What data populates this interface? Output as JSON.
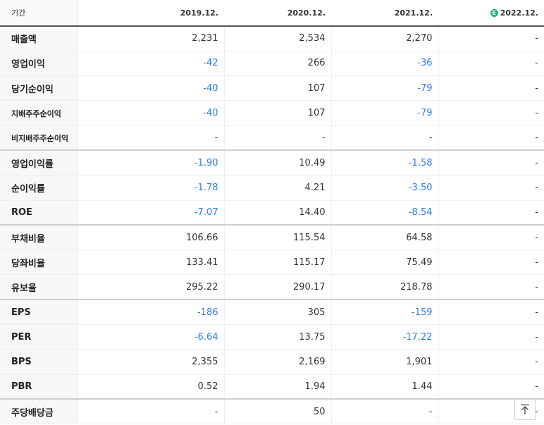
{
  "header": {
    "label": "기간",
    "periods": [
      "2019.12.",
      "2020.12.",
      "2021.12.",
      "2022.12."
    ],
    "estimate_badge": "E"
  },
  "rows": [
    {
      "label": "매출액",
      "values": [
        "2,231",
        "2,534",
        "2,270",
        "-"
      ]
    },
    {
      "label": "영업이익",
      "values": [
        "-42",
        "266",
        "-36",
        "-"
      ]
    },
    {
      "label": "당기순이익",
      "values": [
        "-40",
        "107",
        "-79",
        "-"
      ]
    },
    {
      "label": "지배주주순이익",
      "values": [
        "-40",
        "107",
        "-79",
        "-"
      ]
    },
    {
      "label": "비지배주주순이익",
      "values": [
        "-",
        "-",
        "-",
        "-"
      ]
    },
    {
      "label": "영업이익률",
      "values": [
        "-1.90",
        "10.49",
        "-1.58",
        "-"
      ]
    },
    {
      "label": "순이익률",
      "values": [
        "-1.78",
        "4.21",
        "-3.50",
        "-"
      ]
    },
    {
      "label": "ROE",
      "values": [
        "-7.07",
        "14.40",
        "-8.54",
        "-"
      ]
    },
    {
      "label": "부채비율",
      "values": [
        "106.66",
        "115.54",
        "64.58",
        "-"
      ]
    },
    {
      "label": "당좌비율",
      "values": [
        "133.41",
        "115.17",
        "75.49",
        "-"
      ]
    },
    {
      "label": "유보율",
      "values": [
        "295.22",
        "290.17",
        "218.78",
        "-"
      ]
    },
    {
      "label": "EPS",
      "values": [
        "-186",
        "305",
        "-159",
        "-"
      ]
    },
    {
      "label": "PER",
      "values": [
        "-6.64",
        "13.75",
        "-17.22",
        "-"
      ]
    },
    {
      "label": "BPS",
      "values": [
        "2,355",
        "2,169",
        "1,901",
        "-"
      ]
    },
    {
      "label": "PBR",
      "values": [
        "0.52",
        "1.94",
        "1.44",
        "-"
      ]
    },
    {
      "label": "주당배당금",
      "values": [
        "-",
        "50",
        "-",
        "-"
      ]
    }
  ],
  "colors": {
    "negative": "#2b7de9",
    "estimate_badge": "#19b96b"
  },
  "scroll_top_button": {
    "icon": "arrow-up-to-top-icon"
  }
}
